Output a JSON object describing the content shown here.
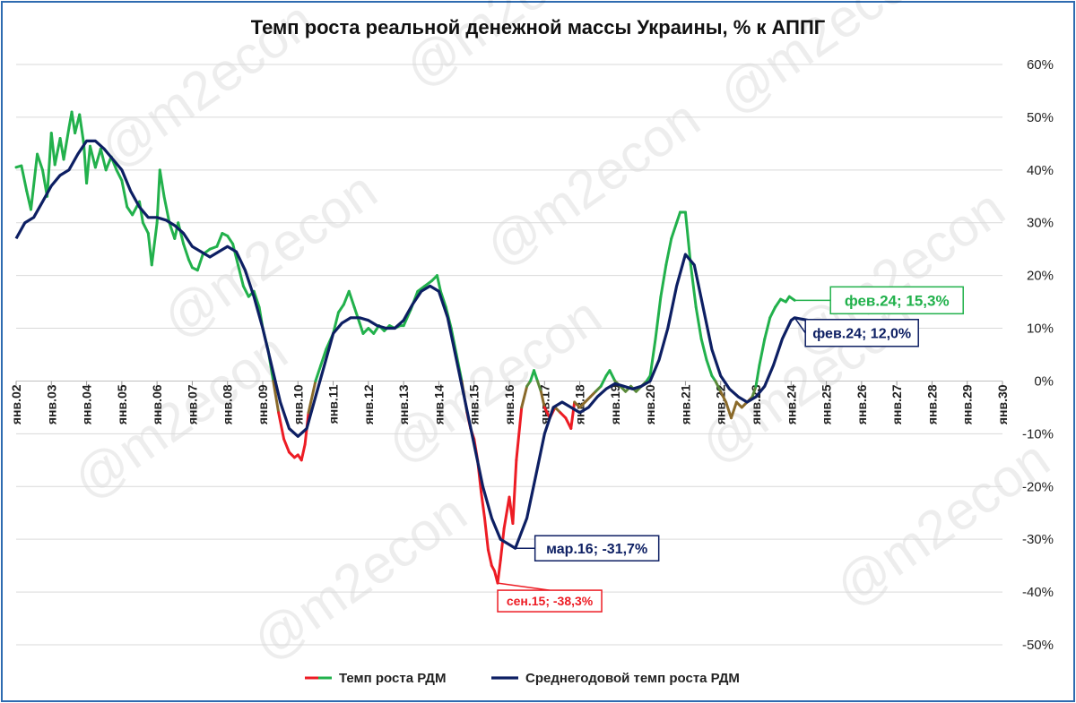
{
  "chart_data": {
    "type": "line",
    "title": "Темп роста реальной денежной массы Украины, % к АППГ",
    "x_range": [
      2002,
      2030
    ],
    "ylim": [
      -50,
      60
    ],
    "y_ticks": [
      "60%",
      "50%",
      "40%",
      "30%",
      "20%",
      "10%",
      "0%",
      "-10%",
      "-20%",
      "-30%",
      "-40%",
      "-50%"
    ],
    "y_tick_values": [
      60,
      50,
      40,
      30,
      20,
      10,
      0,
      -10,
      -20,
      -30,
      -40,
      -50
    ],
    "x_ticks": [
      "янв.02",
      "янв.03",
      "янв.04",
      "янв.05",
      "янв.06",
      "янв.07",
      "янв.08",
      "янв.09",
      "янв.10",
      "янв.11",
      "янв.12",
      "янв.13",
      "янв.14",
      "янв.15",
      "янв.16",
      "янв.17",
      "янв.18",
      "янв.19",
      "янв.20",
      "янв.21",
      "янв.22",
      "янв.23",
      "янв.24",
      "янв.25",
      "янв.26",
      "янв.27",
      "янв.28",
      "янв.29",
      "янв.30"
    ],
    "x_tick_values": [
      2002,
      2003,
      2004,
      2005,
      2006,
      2007,
      2008,
      2009,
      2010,
      2011,
      2012,
      2013,
      2014,
      2015,
      2016,
      2017,
      2018,
      2019,
      2020,
      2021,
      2022,
      2023,
      2024,
      2025,
      2026,
      2027,
      2028,
      2029,
      2030
    ],
    "grid": true,
    "legend_position": "bottom",
    "series": [
      {
        "name": "Темп роста РДМ",
        "color_positive": "#22b14c",
        "color_negative": "#ed1c24",
        "points": [
          [
            2002.0,
            40.5
          ],
          [
            2002.15,
            40.8
          ],
          [
            2002.3,
            36.0
          ],
          [
            2002.42,
            32.5
          ],
          [
            2002.6,
            43.0
          ],
          [
            2002.75,
            40.0
          ],
          [
            2002.88,
            35.0
          ],
          [
            2003.0,
            47.0
          ],
          [
            2003.1,
            41.0
          ],
          [
            2003.25,
            46.0
          ],
          [
            2003.35,
            42.0
          ],
          [
            2003.5,
            48.0
          ],
          [
            2003.58,
            51.0
          ],
          [
            2003.67,
            47.0
          ],
          [
            2003.8,
            50.5
          ],
          [
            2003.92,
            45.0
          ],
          [
            2004.0,
            37.5
          ],
          [
            2004.1,
            44.5
          ],
          [
            2004.25,
            40.5
          ],
          [
            2004.4,
            44.0
          ],
          [
            2004.55,
            40.0
          ],
          [
            2004.7,
            42.5
          ],
          [
            2004.85,
            40.0
          ],
          [
            2005.0,
            38.0
          ],
          [
            2005.15,
            33.0
          ],
          [
            2005.3,
            31.5
          ],
          [
            2005.5,
            34.0
          ],
          [
            2005.6,
            30.0
          ],
          [
            2005.75,
            28.0
          ],
          [
            2005.85,
            22.0
          ],
          [
            2006.0,
            30.0
          ],
          [
            2006.08,
            40.0
          ],
          [
            2006.2,
            35.0
          ],
          [
            2006.35,
            30.0
          ],
          [
            2006.5,
            27.0
          ],
          [
            2006.6,
            30.0
          ],
          [
            2006.75,
            26.0
          ],
          [
            2006.9,
            23.0
          ],
          [
            2007.0,
            21.5
          ],
          [
            2007.15,
            21.0
          ],
          [
            2007.3,
            24.0
          ],
          [
            2007.5,
            25.0
          ],
          [
            2007.7,
            25.5
          ],
          [
            2007.85,
            28.0
          ],
          [
            2008.0,
            27.5
          ],
          [
            2008.15,
            26.0
          ],
          [
            2008.3,
            22.0
          ],
          [
            2008.45,
            18.0
          ],
          [
            2008.6,
            16.0
          ],
          [
            2008.75,
            17.0
          ],
          [
            2008.9,
            14.0
          ],
          [
            2009.0,
            10.0
          ],
          [
            2009.15,
            6.0
          ],
          [
            2009.3,
            0.0
          ],
          [
            2009.45,
            -6.0
          ],
          [
            2009.6,
            -11.0
          ],
          [
            2009.75,
            -13.5
          ],
          [
            2009.9,
            -14.5
          ],
          [
            2010.0,
            -14.0
          ],
          [
            2010.1,
            -15.0
          ],
          [
            2010.2,
            -12.0
          ],
          [
            2010.3,
            -6.0
          ],
          [
            2010.5,
            0.0
          ],
          [
            2010.65,
            3.0
          ],
          [
            2010.8,
            6.0
          ],
          [
            2011.0,
            9.0
          ],
          [
            2011.15,
            13.0
          ],
          [
            2011.3,
            14.5
          ],
          [
            2011.45,
            17.0
          ],
          [
            2011.6,
            14.0
          ],
          [
            2011.75,
            11.0
          ],
          [
            2011.85,
            9.0
          ],
          [
            2012.0,
            10.0
          ],
          [
            2012.15,
            9.0
          ],
          [
            2012.3,
            10.5
          ],
          [
            2012.45,
            9.5
          ],
          [
            2012.6,
            10.5
          ],
          [
            2012.75,
            10.0
          ],
          [
            2012.9,
            10.5
          ],
          [
            2013.0,
            10.5
          ],
          [
            2013.2,
            13.5
          ],
          [
            2013.4,
            17.0
          ],
          [
            2013.6,
            18.0
          ],
          [
            2013.8,
            19.0
          ],
          [
            2013.95,
            20.0
          ],
          [
            2014.05,
            17.0
          ],
          [
            2014.2,
            14.0
          ],
          [
            2014.35,
            10.0
          ],
          [
            2014.5,
            5.0
          ],
          [
            2014.65,
            0.0
          ],
          [
            2014.8,
            -6.0
          ],
          [
            2014.9,
            -9.0
          ],
          [
            2015.0,
            -11.0
          ],
          [
            2015.1,
            -15.0
          ],
          [
            2015.2,
            -21.0
          ],
          [
            2015.3,
            -26.0
          ],
          [
            2015.4,
            -32.0
          ],
          [
            2015.5,
            -35.0
          ],
          [
            2015.58,
            -36.0
          ],
          [
            2015.67,
            -38.3
          ],
          [
            2015.75,
            -34.0
          ],
          [
            2015.85,
            -28.0
          ],
          [
            2016.0,
            -22.0
          ],
          [
            2016.1,
            -27.0
          ],
          [
            2016.2,
            -15.0
          ],
          [
            2016.35,
            -5.0
          ],
          [
            2016.5,
            -1.0
          ],
          [
            2016.6,
            0.0
          ],
          [
            2016.7,
            2.0
          ],
          [
            2016.8,
            0.0
          ],
          [
            2016.9,
            -2.0
          ],
          [
            2017.0,
            -5.0
          ],
          [
            2017.15,
            -7.0
          ],
          [
            2017.3,
            -5.0
          ],
          [
            2017.45,
            -6.0
          ],
          [
            2017.6,
            -7.0
          ],
          [
            2017.75,
            -9.0
          ],
          [
            2017.85,
            -4.0
          ],
          [
            2018.0,
            -5.0
          ],
          [
            2018.15,
            -4.0
          ],
          [
            2018.3,
            -3.0
          ],
          [
            2018.45,
            -2.0
          ],
          [
            2018.6,
            -1.0
          ],
          [
            2018.75,
            1.0
          ],
          [
            2018.85,
            2.0
          ],
          [
            2019.0,
            0.0
          ],
          [
            2019.15,
            -1.0
          ],
          [
            2019.3,
            -2.0
          ],
          [
            2019.45,
            -1.0
          ],
          [
            2019.6,
            -2.0
          ],
          [
            2019.75,
            -1.0
          ],
          [
            2019.9,
            0.0
          ],
          [
            2020.0,
            1.0
          ],
          [
            2020.15,
            8.0
          ],
          [
            2020.3,
            16.0
          ],
          [
            2020.45,
            22.0
          ],
          [
            2020.6,
            27.0
          ],
          [
            2020.75,
            30.0
          ],
          [
            2020.85,
            32.0
          ],
          [
            2021.0,
            32.0
          ],
          [
            2021.15,
            22.0
          ],
          [
            2021.3,
            14.0
          ],
          [
            2021.45,
            8.0
          ],
          [
            2021.6,
            4.0
          ],
          [
            2021.75,
            1.0
          ],
          [
            2021.85,
            0.0
          ],
          [
            2022.0,
            -2.0
          ],
          [
            2022.15,
            -4.0
          ],
          [
            2022.3,
            -7.0
          ],
          [
            2022.45,
            -4.0
          ],
          [
            2022.6,
            -5.0
          ],
          [
            2022.75,
            -4.0
          ],
          [
            2022.9,
            -3.0
          ],
          [
            2023.0,
            -1.0
          ],
          [
            2023.1,
            3.0
          ],
          [
            2023.25,
            8.0
          ],
          [
            2023.4,
            12.0
          ],
          [
            2023.55,
            14.0
          ],
          [
            2023.7,
            15.5
          ],
          [
            2023.85,
            15.0
          ],
          [
            2023.95,
            16.0
          ],
          [
            2024.1,
            15.3
          ]
        ]
      },
      {
        "name": "Среднегодовой темп роста РДМ",
        "color": "#0d1f63",
        "points": [
          [
            2002.0,
            27.0
          ],
          [
            2002.25,
            30.0
          ],
          [
            2002.5,
            31.0
          ],
          [
            2002.75,
            34.0
          ],
          [
            2003.0,
            37.0
          ],
          [
            2003.25,
            39.0
          ],
          [
            2003.5,
            40.0
          ],
          [
            2003.75,
            43.0
          ],
          [
            2004.0,
            45.5
          ],
          [
            2004.25,
            45.5
          ],
          [
            2004.5,
            44.0
          ],
          [
            2004.75,
            42.0
          ],
          [
            2005.0,
            40.0
          ],
          [
            2005.25,
            36.0
          ],
          [
            2005.5,
            33.0
          ],
          [
            2005.75,
            31.0
          ],
          [
            2006.0,
            31.0
          ],
          [
            2006.25,
            30.5
          ],
          [
            2006.5,
            29.5
          ],
          [
            2006.75,
            28.0
          ],
          [
            2007.0,
            25.5
          ],
          [
            2007.25,
            24.5
          ],
          [
            2007.5,
            23.5
          ],
          [
            2007.75,
            24.5
          ],
          [
            2008.0,
            25.5
          ],
          [
            2008.25,
            24.5
          ],
          [
            2008.5,
            21.0
          ],
          [
            2008.75,
            16.0
          ],
          [
            2009.0,
            10.0
          ],
          [
            2009.25,
            3.0
          ],
          [
            2009.5,
            -4.0
          ],
          [
            2009.75,
            -9.0
          ],
          [
            2010.0,
            -10.5
          ],
          [
            2010.25,
            -9.0
          ],
          [
            2010.5,
            -3.0
          ],
          [
            2010.75,
            3.0
          ],
          [
            2011.0,
            9.0
          ],
          [
            2011.25,
            11.0
          ],
          [
            2011.5,
            12.0
          ],
          [
            2011.75,
            12.0
          ],
          [
            2012.0,
            11.5
          ],
          [
            2012.25,
            10.5
          ],
          [
            2012.5,
            10.0
          ],
          [
            2012.75,
            10.0
          ],
          [
            2013.0,
            11.5
          ],
          [
            2013.25,
            14.5
          ],
          [
            2013.5,
            17.0
          ],
          [
            2013.75,
            18.0
          ],
          [
            2014.0,
            17.0
          ],
          [
            2014.25,
            12.0
          ],
          [
            2014.5,
            4.0
          ],
          [
            2014.75,
            -4.0
          ],
          [
            2015.0,
            -12.0
          ],
          [
            2015.25,
            -20.0
          ],
          [
            2015.5,
            -26.0
          ],
          [
            2015.75,
            -30.0
          ],
          [
            2016.0,
            -31.0
          ],
          [
            2016.17,
            -31.7
          ],
          [
            2016.5,
            -26.0
          ],
          [
            2016.75,
            -18.0
          ],
          [
            2017.0,
            -10.0
          ],
          [
            2017.25,
            -5.0
          ],
          [
            2017.5,
            -4.0
          ],
          [
            2017.75,
            -5.0
          ],
          [
            2018.0,
            -6.0
          ],
          [
            2018.25,
            -5.0
          ],
          [
            2018.5,
            -3.0
          ],
          [
            2018.75,
            -1.5
          ],
          [
            2019.0,
            -0.5
          ],
          [
            2019.25,
            -1.0
          ],
          [
            2019.5,
            -1.5
          ],
          [
            2019.75,
            -1.0
          ],
          [
            2020.0,
            0.0
          ],
          [
            2020.25,
            4.0
          ],
          [
            2020.5,
            10.0
          ],
          [
            2020.75,
            18.0
          ],
          [
            2021.0,
            24.0
          ],
          [
            2021.25,
            22.0
          ],
          [
            2021.5,
            14.0
          ],
          [
            2021.75,
            6.0
          ],
          [
            2022.0,
            1.0
          ],
          [
            2022.25,
            -1.5
          ],
          [
            2022.5,
            -3.0
          ],
          [
            2022.75,
            -4.0
          ],
          [
            2023.0,
            -3.0
          ],
          [
            2023.25,
            -1.0
          ],
          [
            2023.5,
            3.0
          ],
          [
            2023.75,
            8.0
          ],
          [
            2024.0,
            11.5
          ],
          [
            2024.1,
            12.0
          ],
          [
            2024.5,
            11.5
          ],
          [
            2024.9,
            11.0
          ]
        ]
      }
    ],
    "annotations": [
      {
        "text": "фев.24; 15,3%",
        "x": 2024.1,
        "y": 15.3,
        "color": "#22b14c"
      },
      {
        "text": "фев.24; 12,0%",
        "x": 2024.1,
        "y": 12.0,
        "color": "#0d1f63"
      },
      {
        "text": "мар.16; -31,7%",
        "x": 2016.17,
        "y": -31.7,
        "color": "#0d1f63"
      },
      {
        "text": "сен.15; -38,3%",
        "x": 2015.67,
        "y": -38.3,
        "color": "#ed1c24"
      }
    ],
    "watermark": "@m2econ"
  }
}
